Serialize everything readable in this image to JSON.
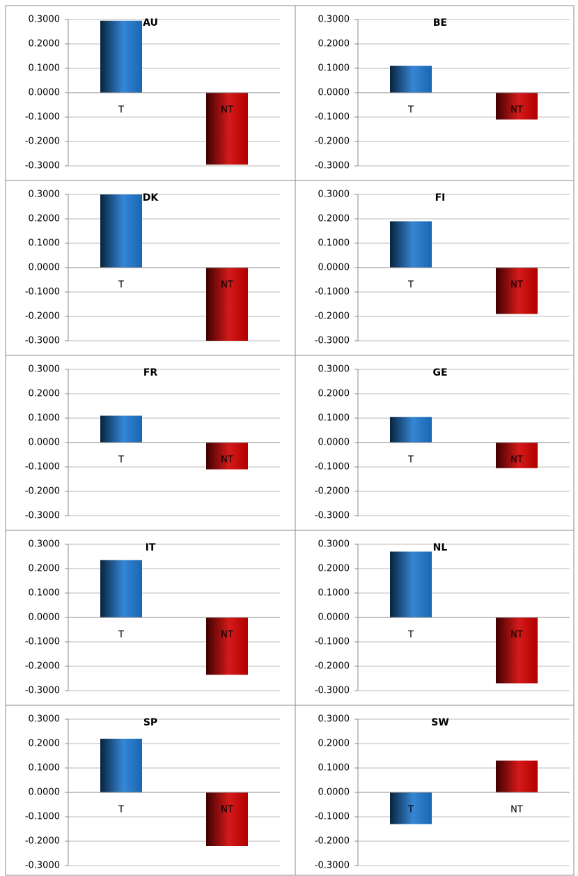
{
  "chart_data": [
    {
      "type": "bar",
      "title": "AU",
      "categories": [
        "T",
        "NT"
      ],
      "values": [
        0.295,
        -0.295
      ],
      "colors": [
        "#1f78d0",
        "#d00000"
      ],
      "ylim": [
        -0.3,
        0.3
      ],
      "yticks": [
        {
          "value": -0.3,
          "label": "-0.3000"
        },
        {
          "value": -0.2,
          "label": "-0.2000"
        },
        {
          "value": -0.1,
          "label": "-0.1000"
        },
        {
          "value": 0,
          "label": "0.0000"
        },
        {
          "value": 0.1,
          "label": "0.1000"
        },
        {
          "value": 0.2,
          "label": "0.2000"
        },
        {
          "value": 0.3,
          "label": "0.3000"
        }
      ],
      "grid": true
    },
    {
      "type": "bar",
      "title": "BE",
      "categories": [
        "T",
        "NT"
      ],
      "values": [
        0.11,
        -0.11
      ],
      "colors": [
        "#1f78d0",
        "#d00000"
      ],
      "ylim": [
        -0.3,
        0.3
      ],
      "yticks": [
        {
          "value": -0.3,
          "label": "-0.3000"
        },
        {
          "value": -0.2,
          "label": "-0.2000"
        },
        {
          "value": -0.1,
          "label": "-0.1000"
        },
        {
          "value": 0,
          "label": "0.0000"
        },
        {
          "value": 0.1,
          "label": "0.1000"
        },
        {
          "value": 0.2,
          "label": "0.2000"
        },
        {
          "value": 0.3,
          "label": "0.3000"
        }
      ],
      "grid": true
    },
    {
      "type": "bar",
      "title": "DK",
      "categories": [
        "T",
        "NT"
      ],
      "values": [
        0.3,
        -0.3
      ],
      "colors": [
        "#1f78d0",
        "#d00000"
      ],
      "ylim": [
        -0.3,
        0.3
      ],
      "yticks": [
        {
          "value": -0.3,
          "label": "-0.3000"
        },
        {
          "value": -0.2,
          "label": "-0.2000"
        },
        {
          "value": -0.1,
          "label": "-0.1000"
        },
        {
          "value": 0,
          "label": "0.0000"
        },
        {
          "value": 0.1,
          "label": "0.1000"
        },
        {
          "value": 0.2,
          "label": "0.2000"
        },
        {
          "value": 0.3,
          "label": "0.3000"
        }
      ],
      "grid": true
    },
    {
      "type": "bar",
      "title": "FI",
      "categories": [
        "T",
        "NT"
      ],
      "values": [
        0.19,
        -0.19
      ],
      "colors": [
        "#1f78d0",
        "#d00000"
      ],
      "ylim": [
        -0.3,
        0.3
      ],
      "yticks": [
        {
          "value": -0.3,
          "label": "-0.3000"
        },
        {
          "value": -0.2,
          "label": "-0.2000"
        },
        {
          "value": -0.1,
          "label": "-0.1000"
        },
        {
          "value": 0,
          "label": "0.0000"
        },
        {
          "value": 0.1,
          "label": "0.1000"
        },
        {
          "value": 0.2,
          "label": "0.2000"
        },
        {
          "value": 0.3,
          "label": "0.3000"
        }
      ],
      "grid": true
    },
    {
      "type": "bar",
      "title": "FR",
      "categories": [
        "T",
        "NT"
      ],
      "values": [
        0.11,
        -0.11
      ],
      "colors": [
        "#1f78d0",
        "#d00000"
      ],
      "ylim": [
        -0.3,
        0.3
      ],
      "yticks": [
        {
          "value": -0.3,
          "label": "-0.3000"
        },
        {
          "value": -0.2,
          "label": "-0.2000"
        },
        {
          "value": -0.1,
          "label": "-0.1000"
        },
        {
          "value": 0,
          "label": "0.0000"
        },
        {
          "value": 0.1,
          "label": "0.1000"
        },
        {
          "value": 0.2,
          "label": "0.2000"
        },
        {
          "value": 0.3,
          "label": "0.3000"
        }
      ],
      "grid": true
    },
    {
      "type": "bar",
      "title": "GE",
      "categories": [
        "T",
        "NT"
      ],
      "values": [
        0.105,
        -0.105
      ],
      "colors": [
        "#1f78d0",
        "#d00000"
      ],
      "ylim": [
        -0.3,
        0.3
      ],
      "yticks": [
        {
          "value": -0.3,
          "label": "-0.3000"
        },
        {
          "value": -0.2,
          "label": "-0.2000"
        },
        {
          "value": -0.1,
          "label": "-0.1000"
        },
        {
          "value": 0,
          "label": "0.0000"
        },
        {
          "value": 0.1,
          "label": "0.1000"
        },
        {
          "value": 0.2,
          "label": "0.2000"
        },
        {
          "value": 0.3,
          "label": "0.3000"
        }
      ],
      "grid": true
    },
    {
      "type": "bar",
      "title": "IT",
      "categories": [
        "T",
        "NT"
      ],
      "values": [
        0.235,
        -0.235
      ],
      "colors": [
        "#1f78d0",
        "#d00000"
      ],
      "ylim": [
        -0.3,
        0.3
      ],
      "yticks": [
        {
          "value": -0.3,
          "label": "-0.3000"
        },
        {
          "value": -0.2,
          "label": "-0.2000"
        },
        {
          "value": -0.1,
          "label": "-0.1000"
        },
        {
          "value": 0,
          "label": "0.0000"
        },
        {
          "value": 0.1,
          "label": "0.1000"
        },
        {
          "value": 0.2,
          "label": "0.2000"
        },
        {
          "value": 0.3,
          "label": "0.3000"
        }
      ],
      "grid": true
    },
    {
      "type": "bar",
      "title": "NL",
      "categories": [
        "T",
        "NT"
      ],
      "values": [
        0.27,
        -0.27
      ],
      "colors": [
        "#1f78d0",
        "#d00000"
      ],
      "ylim": [
        -0.3,
        0.3
      ],
      "yticks": [
        {
          "value": -0.3,
          "label": "-0.3000"
        },
        {
          "value": -0.2,
          "label": "-0.2000"
        },
        {
          "value": -0.1,
          "label": "-0.1000"
        },
        {
          "value": 0,
          "label": "0.0000"
        },
        {
          "value": 0.1,
          "label": "0.1000"
        },
        {
          "value": 0.2,
          "label": "0.2000"
        },
        {
          "value": 0.3,
          "label": "0.3000"
        }
      ],
      "grid": true
    },
    {
      "type": "bar",
      "title": "SP",
      "categories": [
        "T",
        "NT"
      ],
      "values": [
        0.22,
        -0.22
      ],
      "colors": [
        "#1f78d0",
        "#d00000"
      ],
      "ylim": [
        -0.3,
        0.3
      ],
      "yticks": [
        {
          "value": -0.3,
          "label": "-0.3000"
        },
        {
          "value": -0.2,
          "label": "-0.2000"
        },
        {
          "value": -0.1,
          "label": "-0.1000"
        },
        {
          "value": 0,
          "label": "0.0000"
        },
        {
          "value": 0.1,
          "label": "0.1000"
        },
        {
          "value": 0.2,
          "label": "0.2000"
        },
        {
          "value": 0.3,
          "label": "0.3000"
        }
      ],
      "grid": true
    },
    {
      "type": "bar",
      "title": "SW",
      "categories": [
        "T",
        "NT"
      ],
      "values": [
        -0.13,
        0.13
      ],
      "colors": [
        "#1f78d0",
        "#d00000"
      ],
      "ylim": [
        -0.3,
        0.3
      ],
      "yticks": [
        {
          "value": -0.3,
          "label": "-0.3000"
        },
        {
          "value": -0.2,
          "label": "-0.2000"
        },
        {
          "value": -0.1,
          "label": "-0.1000"
        },
        {
          "value": 0,
          "label": "0.0000"
        },
        {
          "value": 0.1,
          "label": "0.1000"
        },
        {
          "value": 0.2,
          "label": "0.2000"
        },
        {
          "value": 0.3,
          "label": "0.3000"
        }
      ],
      "grid": true
    }
  ]
}
